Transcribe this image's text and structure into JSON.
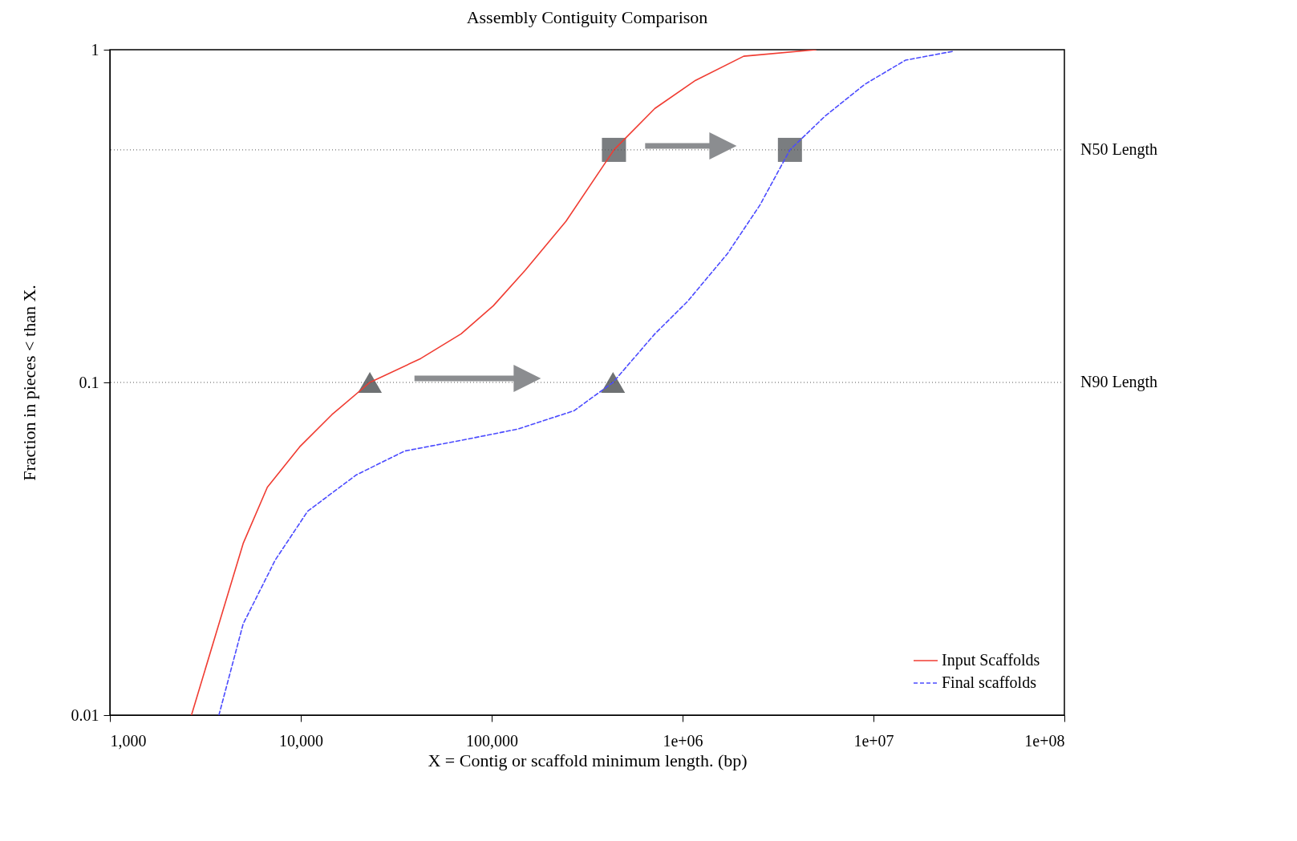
{
  "chart_data": {
    "type": "line",
    "title": "Assembly Contiguity Comparison",
    "xlabel": "X = Contig or scaffold minimum length. (bp)",
    "ylabel": "Fraction in pieces < than X.",
    "log": "xy",
    "xlim": [
      1000,
      100000000
    ],
    "ylim": [
      0.01,
      1
    ],
    "xticks": [
      {
        "value": 1000,
        "label": "1,000"
      },
      {
        "value": 10000,
        "label": "10,000"
      },
      {
        "value": 100000,
        "label": "100,000"
      },
      {
        "value": 1000000,
        "label": "1e+06"
      },
      {
        "value": 10000000,
        "label": "1e+07"
      },
      {
        "value": 100000000,
        "label": "1e+08"
      }
    ],
    "yticks": [
      0.01,
      0.1,
      1
    ],
    "grid": false,
    "legend": "bottom right",
    "series": [
      {
        "name": "Input Scaffolds",
        "color": "#f03c32",
        "line_style": "solid",
        "x": [
          2675,
          3725,
          4990,
          6680,
          9860,
          14550,
          23000,
          42500,
          69200,
          102000,
          150600,
          245000,
          437000,
          716000,
          1170000,
          2090000,
          5000000
        ],
        "values": [
          0.01,
          0.0188,
          0.0328,
          0.0484,
          0.064,
          0.08,
          0.1,
          0.118,
          0.14,
          0.17,
          0.218,
          0.305,
          0.5,
          0.666,
          0.809,
          0.956,
          1.0
        ]
      },
      {
        "name": "Final scaffolds",
        "color": "#4b4bff",
        "line_style": "dashed",
        "x": [
          3725,
          4990,
          7360,
          10860,
          19500,
          35000,
          76200,
          137000,
          270000,
          432000,
          716000,
          1060000,
          1720000,
          2540000,
          3650000,
          5550000,
          9000000,
          14700000,
          26300000
        ],
        "values": [
          0.01,
          0.0188,
          0.0293,
          0.041,
          0.0527,
          0.0622,
          0.0677,
          0.0724,
          0.0822,
          0.1,
          0.14,
          0.175,
          0.244,
          0.341,
          0.5,
          0.63,
          0.787,
          0.93,
          0.99
        ]
      },
      {
        "type": "scatter",
        "marker": "triangle",
        "color": "#6e7173",
        "x": [
          23000,
          432000
        ],
        "values": [
          0.1,
          0.1
        ]
      },
      {
        "type": "scatter",
        "marker": "square",
        "color": "#7a7d80",
        "x": [
          437000,
          3650000
        ],
        "values": [
          0.5,
          0.5
        ]
      }
    ],
    "ref_lines": [
      {
        "axis": "y",
        "value": 0.5,
        "label": "N50 Length",
        "color": "#555555",
        "line_style": "dotted"
      },
      {
        "axis": "y",
        "value": 0.1,
        "label": "N90 Length",
        "color": "#555555",
        "line_style": "dotted"
      }
    ]
  }
}
